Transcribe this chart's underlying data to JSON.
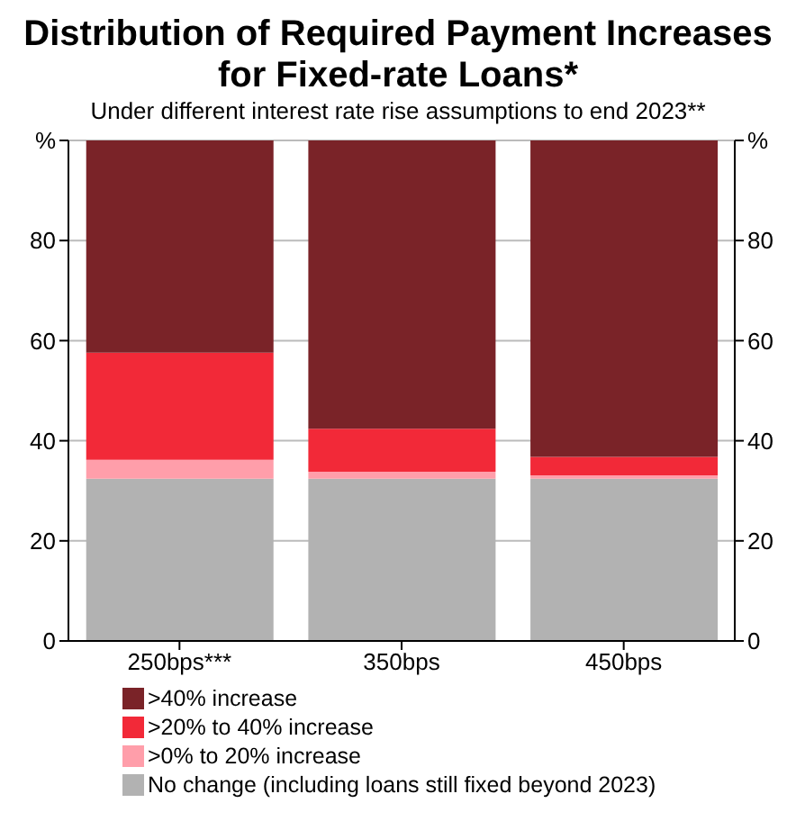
{
  "chart_data": {
    "type": "bar",
    "title": "Distribution of Required Payment Increases for Fixed-rate Loans*",
    "subtitle": "Under different interest rate rise assumptions to end 2023**",
    "categories": [
      "250bps***",
      "350bps",
      "450bps"
    ],
    "stacked": true,
    "series": [
      {
        "name": "No change (including loans still fixed beyond 2023)",
        "color": "#b2b2b2",
        "values": [
          32.4,
          32.4,
          32.4
        ]
      },
      {
        "name": ">0% to 20% increase",
        "color": "#ff9eaa",
        "values": [
          3.8,
          1.4,
          0.7
        ]
      },
      {
        "name": ">20% to 40% increase",
        "color": "#f22938",
        "values": [
          21.4,
          8.6,
          3.7
        ]
      },
      {
        "name": ">40% increase",
        "color": "#7a2328",
        "values": [
          42.4,
          57.6,
          63.2
        ]
      }
    ],
    "ylim": [
      0,
      100
    ],
    "yticks": [
      0,
      20,
      40,
      60,
      80,
      {
        "value": 100,
        "label": "%"
      }
    ],
    "y2lim": [
      0,
      100
    ],
    "y2ticks": [
      0,
      20,
      40,
      60,
      80,
      {
        "value": 100,
        "label": "%"
      }
    ],
    "grid": "y",
    "legend": "bottom"
  }
}
